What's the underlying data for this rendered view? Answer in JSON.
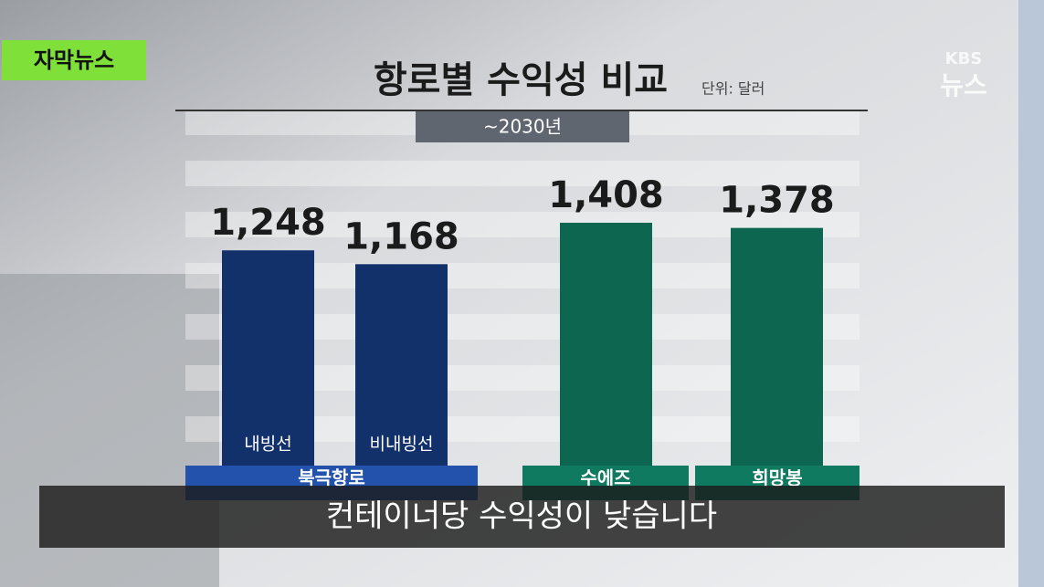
{
  "chart_data": {
    "type": "bar",
    "title": "항로별 수익성 비교",
    "unit_note": "단위: 달러",
    "subtitle": "~2030년",
    "categories": [
      "내빙선",
      "비내빙선",
      null,
      null
    ],
    "values": [
      1248,
      1168,
      1408,
      1378
    ],
    "value_labels": [
      "1,248",
      "1,168",
      "1,408",
      "1,378"
    ],
    "colors": [
      "#12306a",
      "#12306a",
      "#0d6650",
      "#0d6650"
    ],
    "groups": [
      {
        "name": "북극항로",
        "color": "#2352ad"
      },
      {
        "name": "수에즈",
        "color": "#0f7a60"
      },
      {
        "name": "희망봉",
        "color": "#0f7a60"
      }
    ]
  },
  "badge": "자막뉴스",
  "logo": {
    "brand": "KBS",
    "name": "뉴스"
  },
  "caption": "컨테이너당 수익성이 낮습니다"
}
